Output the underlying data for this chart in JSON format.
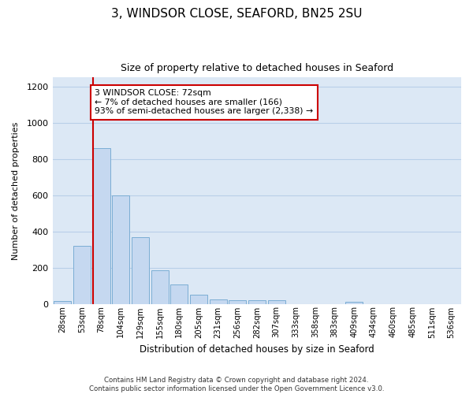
{
  "title": "3, WINDSOR CLOSE, SEAFORD, BN25 2SU",
  "subtitle": "Size of property relative to detached houses in Seaford",
  "xlabel": "Distribution of detached houses by size in Seaford",
  "ylabel": "Number of detached properties",
  "footer_line1": "Contains HM Land Registry data © Crown copyright and database right 2024.",
  "footer_line2": "Contains public sector information licensed under the Open Government Licence v3.0.",
  "bar_labels": [
    "28sqm",
    "53sqm",
    "78sqm",
    "104sqm",
    "129sqm",
    "155sqm",
    "180sqm",
    "205sqm",
    "231sqm",
    "256sqm",
    "282sqm",
    "307sqm",
    "333sqm",
    "358sqm",
    "383sqm",
    "409sqm",
    "434sqm",
    "460sqm",
    "485sqm",
    "511sqm",
    "536sqm"
  ],
  "bar_values": [
    14,
    320,
    858,
    598,
    370,
    185,
    105,
    48,
    22,
    18,
    18,
    20,
    0,
    0,
    0,
    12,
    0,
    0,
    0,
    0,
    0
  ],
  "bar_color": "#c5d8f0",
  "bar_edge_color": "#7badd4",
  "plot_bg_color": "#dce8f5",
  "fig_bg_color": "#ffffff",
  "grid_color": "#b8cfe8",
  "vline_color": "#cc0000",
  "annotation_text": "3 WINDSOR CLOSE: 72sqm\n← 7% of detached houses are smaller (166)\n93% of semi-detached houses are larger (2,338) →",
  "annotation_box_facecolor": "#ffffff",
  "annotation_box_edgecolor": "#cc0000",
  "ylim": [
    0,
    1250
  ],
  "yticks": [
    0,
    200,
    400,
    600,
    800,
    1000,
    1200
  ],
  "vline_bar_index": 2
}
